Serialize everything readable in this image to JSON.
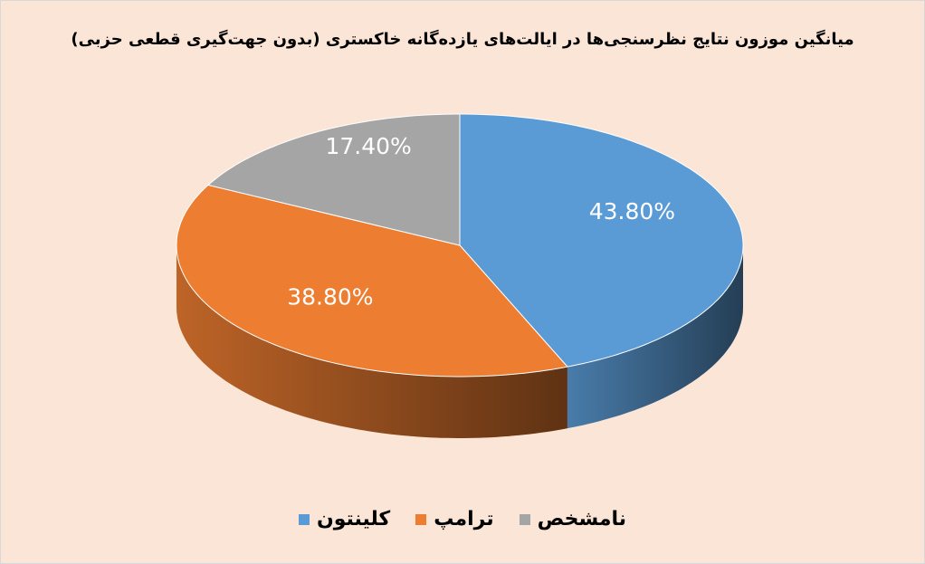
{
  "chart_data": {
    "type": "pie3d",
    "title": "میانگین موزون نتایج نظرسنجی‌ها در ایالت‌های یازده‌گانه خاکستری (بدون جهت‌گیری قطعی حزبی)",
    "categories": [
      "کلینتون",
      "ترامپ",
      "نامشخص"
    ],
    "values": [
      43.8,
      38.8,
      17.4
    ],
    "value_labels": [
      "43.80%",
      "38.80%",
      "17.40%"
    ],
    "colors": [
      "#5b9bd5",
      "#ed7d31",
      "#a5a5a5"
    ],
    "legend": "bottom"
  }
}
